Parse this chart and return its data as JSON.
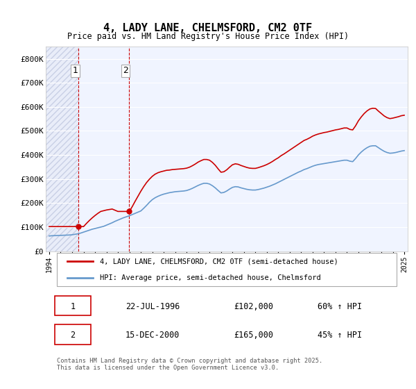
{
  "title": "4, LADY LANE, CHELMSFORD, CM2 0TF",
  "subtitle": "Price paid vs. HM Land Registry's House Price Index (HPI)",
  "xlabel": "",
  "ylabel": "",
  "ylim": [
    0,
    850000
  ],
  "yticks": [
    0,
    100000,
    200000,
    300000,
    400000,
    500000,
    600000,
    700000,
    800000
  ],
  "ytick_labels": [
    "£0",
    "£100K",
    "£200K",
    "£300K",
    "£400K",
    "£500K",
    "£600K",
    "£700K",
    "£800K"
  ],
  "background_color": "#ffffff",
  "plot_bg_color": "#f0f4ff",
  "grid_color": "#ffffff",
  "hpi_color": "#6699cc",
  "price_color": "#cc0000",
  "marker_color": "#cc0000",
  "sale1_year": 1996.55,
  "sale1_price": 102000,
  "sale2_year": 2000.96,
  "sale2_price": 165000,
  "legend_label1": "4, LADY LANE, CHELMSFORD, CM2 0TF (semi-detached house)",
  "legend_label2": "HPI: Average price, semi-detached house, Chelmsford",
  "table_rows": [
    [
      "1",
      "22-JUL-1996",
      "£102,000",
      "60% ↑ HPI"
    ],
    [
      "2",
      "15-DEC-2000",
      "£165,000",
      "45% ↑ HPI"
    ]
  ],
  "footer": "Contains HM Land Registry data © Crown copyright and database right 2025.\nThis data is licensed under the Open Government Licence v3.0.",
  "hpi_data_x": [
    1994.0,
    1994.25,
    1994.5,
    1994.75,
    1995.0,
    1995.25,
    1995.5,
    1995.75,
    1996.0,
    1996.25,
    1996.5,
    1996.75,
    1997.0,
    1997.25,
    1997.5,
    1997.75,
    1998.0,
    1998.25,
    1998.5,
    1998.75,
    1999.0,
    1999.25,
    1999.5,
    1999.75,
    2000.0,
    2000.25,
    2000.5,
    2000.75,
    2001.0,
    2001.25,
    2001.5,
    2001.75,
    2002.0,
    2002.25,
    2002.5,
    2002.75,
    2003.0,
    2003.25,
    2003.5,
    2003.75,
    2004.0,
    2004.25,
    2004.5,
    2004.75,
    2005.0,
    2005.25,
    2005.5,
    2005.75,
    2006.0,
    2006.25,
    2006.5,
    2006.75,
    2007.0,
    2007.25,
    2007.5,
    2007.75,
    2008.0,
    2008.25,
    2008.5,
    2008.75,
    2009.0,
    2009.25,
    2009.5,
    2009.75,
    2010.0,
    2010.25,
    2010.5,
    2010.75,
    2011.0,
    2011.25,
    2011.5,
    2011.75,
    2012.0,
    2012.25,
    2012.5,
    2012.75,
    2013.0,
    2013.25,
    2013.5,
    2013.75,
    2014.0,
    2014.25,
    2014.5,
    2014.75,
    2015.0,
    2015.25,
    2015.5,
    2015.75,
    2016.0,
    2016.25,
    2016.5,
    2016.75,
    2017.0,
    2017.25,
    2017.5,
    2017.75,
    2018.0,
    2018.25,
    2018.5,
    2018.75,
    2019.0,
    2019.25,
    2019.5,
    2019.75,
    2020.0,
    2020.25,
    2020.5,
    2020.75,
    2021.0,
    2021.25,
    2021.5,
    2021.75,
    2022.0,
    2022.25,
    2022.5,
    2022.75,
    2023.0,
    2023.25,
    2023.5,
    2023.75,
    2024.0,
    2024.25,
    2024.5,
    2024.75,
    2025.0
  ],
  "hpi_data_y": [
    63000,
    64000,
    64500,
    65000,
    65500,
    66000,
    66500,
    67000,
    68000,
    70000,
    72000,
    75000,
    79000,
    83000,
    87000,
    91000,
    94000,
    97000,
    100000,
    103000,
    108000,
    113000,
    118000,
    124000,
    129000,
    134000,
    139000,
    143000,
    147000,
    152000,
    157000,
    162000,
    167000,
    178000,
    190000,
    203000,
    214000,
    222000,
    228000,
    233000,
    237000,
    240000,
    243000,
    245000,
    247000,
    248000,
    249000,
    250000,
    252000,
    256000,
    261000,
    267000,
    273000,
    278000,
    282000,
    282000,
    279000,
    272000,
    263000,
    252000,
    242000,
    244000,
    250000,
    258000,
    265000,
    268000,
    267000,
    263000,
    260000,
    257000,
    255000,
    254000,
    254000,
    256000,
    259000,
    262000,
    266000,
    270000,
    275000,
    280000,
    286000,
    292000,
    298000,
    304000,
    310000,
    316000,
    322000,
    328000,
    333000,
    339000,
    343000,
    348000,
    353000,
    357000,
    360000,
    362000,
    364000,
    366000,
    368000,
    370000,
    372000,
    374000,
    376000,
    378000,
    378000,
    374000,
    372000,
    385000,
    400000,
    412000,
    422000,
    430000,
    436000,
    438000,
    438000,
    430000,
    422000,
    415000,
    410000,
    407000,
    408000,
    410000,
    413000,
    416000,
    418000
  ],
  "price_data_x": [
    1994.0,
    1994.25,
    1994.5,
    1994.75,
    1995.0,
    1995.25,
    1995.5,
    1995.75,
    1996.0,
    1996.25,
    1996.5,
    1996.75,
    1997.0,
    1997.25,
    1997.5,
    1997.75,
    1998.0,
    1998.25,
    1998.5,
    1998.75,
    1999.0,
    1999.25,
    1999.5,
    1999.75,
    2000.0,
    2000.25,
    2000.5,
    2000.75,
    2001.0,
    2001.25,
    2001.5,
    2001.75,
    2002.0,
    2002.25,
    2002.5,
    2002.75,
    2003.0,
    2003.25,
    2003.5,
    2003.75,
    2004.0,
    2004.25,
    2004.5,
    2004.75,
    2005.0,
    2005.25,
    2005.5,
    2005.75,
    2006.0,
    2006.25,
    2006.5,
    2006.75,
    2007.0,
    2007.25,
    2007.5,
    2007.75,
    2008.0,
    2008.25,
    2008.5,
    2008.75,
    2009.0,
    2009.25,
    2009.5,
    2009.75,
    2010.0,
    2010.25,
    2010.5,
    2010.75,
    2011.0,
    2011.25,
    2011.5,
    2011.75,
    2012.0,
    2012.25,
    2012.5,
    2012.75,
    2013.0,
    2013.25,
    2013.5,
    2013.75,
    2014.0,
    2014.25,
    2014.5,
    2014.75,
    2015.0,
    2015.25,
    2015.5,
    2015.75,
    2016.0,
    2016.25,
    2016.5,
    2016.75,
    2017.0,
    2017.25,
    2017.5,
    2017.75,
    2018.0,
    2018.25,
    2018.5,
    2018.75,
    2019.0,
    2019.25,
    2019.5,
    2019.75,
    2020.0,
    2020.25,
    2020.5,
    2020.75,
    2021.0,
    2021.25,
    2021.5,
    2021.75,
    2022.0,
    2022.25,
    2022.5,
    2022.75,
    2023.0,
    2023.25,
    2023.5,
    2023.75,
    2024.0,
    2024.25,
    2024.5,
    2024.75,
    2025.0
  ],
  "price_data_y": [
    102000,
    102000,
    102000,
    102000,
    102000,
    102000,
    102000,
    102000,
    102000,
    102000,
    102000,
    102000,
    102000,
    115000,
    127000,
    138000,
    148000,
    157000,
    165000,
    168000,
    171000,
    173000,
    175000,
    170000,
    165000,
    165000,
    165000,
    165000,
    165000,
    185000,
    207000,
    228000,
    249000,
    268000,
    285000,
    299000,
    311000,
    320000,
    326000,
    330000,
    333000,
    336000,
    337000,
    339000,
    340000,
    341000,
    342000,
    343000,
    345000,
    349000,
    355000,
    362000,
    370000,
    376000,
    381000,
    381000,
    378000,
    369000,
    357000,
    342000,
    328000,
    330000,
    338000,
    349000,
    359000,
    363000,
    361000,
    356000,
    352000,
    348000,
    345000,
    344000,
    344000,
    347000,
    351000,
    355000,
    360000,
    366000,
    373000,
    381000,
    388000,
    397000,
    404000,
    412000,
    420000,
    428000,
    436000,
    444000,
    452000,
    460000,
    465000,
    471000,
    478000,
    483000,
    487000,
    490000,
    493000,
    495000,
    498000,
    501000,
    504000,
    506000,
    509000,
    512000,
    512000,
    506000,
    504000,
    521000,
    542000,
    558000,
    572000,
    583000,
    591000,
    594000,
    593000,
    582000,
    572000,
    562000,
    555000,
    551000,
    553000,
    556000,
    559000,
    563000,
    565000
  ],
  "xlim_start": 1993.7,
  "xlim_end": 2025.3,
  "xtick_years": [
    1994,
    1995,
    1996,
    1997,
    1998,
    1999,
    2000,
    2001,
    2002,
    2003,
    2004,
    2005,
    2006,
    2007,
    2008,
    2009,
    2010,
    2011,
    2012,
    2013,
    2014,
    2015,
    2016,
    2017,
    2018,
    2019,
    2020,
    2021,
    2022,
    2023,
    2024,
    2025
  ]
}
